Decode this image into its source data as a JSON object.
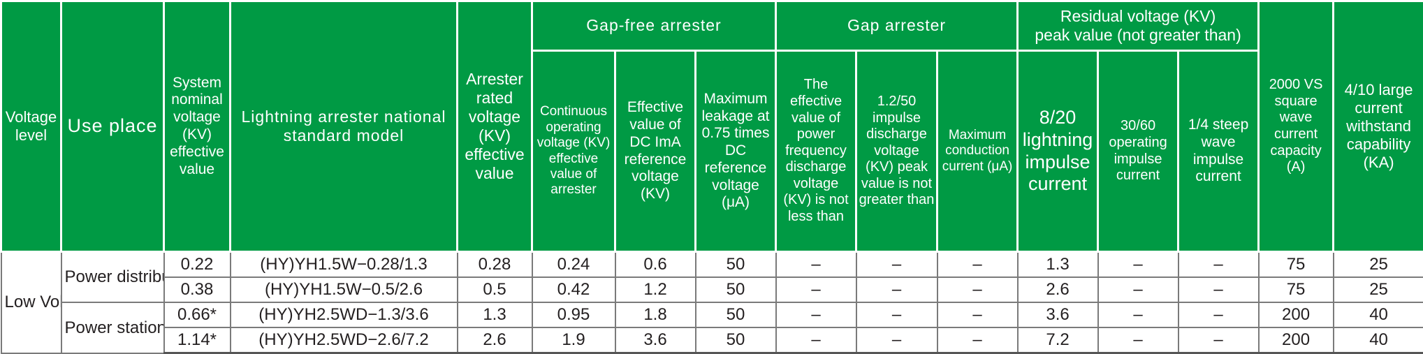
{
  "header": {
    "voltage_level": "Voltage level",
    "use_place": "Use place",
    "system_nominal_voltage": "System nominal voltage (KV) effective value",
    "national_model": "Lightning arrester national standard model",
    "rated_voltage": "Arrester rated voltage (KV) effective value",
    "gap_free_group": "Gap-free arrester",
    "continuous_operating_voltage": "Continuous operating voltage (KV) effective value of arrester",
    "dc_reference_voltage": "Effective value of DC ImA reference voltage (KV)",
    "max_leakage": "Maximum leakage at 0.75 times DC reference voltage (μA)",
    "gap_group": "Gap arrester",
    "power_freq_discharge": "The effective value of power frequency discharge voltage (KV) is not less than",
    "impulse_discharge": "1.2/50 impulse discharge voltage (KV) peak value is not greater than",
    "max_conduction": "Maximum conduction current (μA)",
    "residual_group_line1": "Residual voltage (KV)",
    "residual_group_line2": "peak value (not greater than)",
    "lightning_impulse": "8/20 lightning impulse current",
    "operating_impulse": "30/60 operating impulse current",
    "steep_wave": "1/4 steep wave impulse current",
    "square_wave": "2000 VS square wave current capacity (A)",
    "large_current": "4/10 large current withstand capability (KA)"
  },
  "body": {
    "voltage_level_value": "Low Voltage",
    "use_groups": [
      "Power distribution type",
      "Power station type"
    ],
    "rows": [
      [
        "0.22",
        "(HY)YH1.5W−0.28/1.3",
        "0.28",
        "0.24",
        "0.6",
        "50",
        "–",
        "–",
        "–",
        "1.3",
        "–",
        "–",
        "75",
        "25"
      ],
      [
        "0.38",
        "(HY)YH1.5W−0.5/2.6",
        "0.5",
        "0.42",
        "1.2",
        "50",
        "–",
        "–",
        "–",
        "2.6",
        "–",
        "–",
        "75",
        "25"
      ],
      [
        "0.66*",
        "(HY)YH2.5WD−1.3/3.6",
        "1.3",
        "0.95",
        "1.8",
        "50",
        "–",
        "–",
        "–",
        "3.6",
        "–",
        "–",
        "200",
        "40"
      ],
      [
        "1.14*",
        "(HY)YH2.5WD−2.6/7.2",
        "2.6",
        "1.9",
        "3.6",
        "50",
        "–",
        "–",
        "–",
        "7.2",
        "–",
        "–",
        "200",
        "40"
      ]
    ]
  },
  "colors": {
    "header_green": "#009a44",
    "header_text": "#ffffff",
    "body_text": "#231f20",
    "grid_line": "#7a7a7a"
  }
}
